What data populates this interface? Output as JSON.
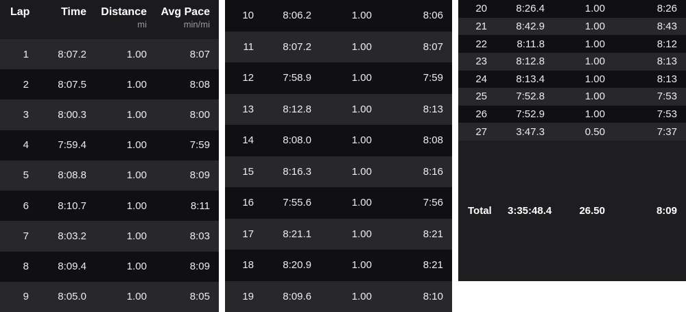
{
  "colors": {
    "page_bg": "#ffffff",
    "header_bg": "#1b1b1d",
    "row_light": "#28282a",
    "row_dark": "#101012",
    "total_bg": "#1e1e20",
    "text_primary": "#ececee",
    "text_header": "#ffffff",
    "text_unit": "#98989e"
  },
  "header": {
    "columns": [
      {
        "label": "Lap",
        "unit": ""
      },
      {
        "label": "Time",
        "unit": ""
      },
      {
        "label": "Distance",
        "unit": "mi"
      },
      {
        "label": "Avg Pace",
        "unit": "min/mi"
      }
    ]
  },
  "panels": [
    {
      "name": "laps-1-9",
      "rows": [
        {
          "lap": "1",
          "time": "8:07.2",
          "distance": "1.00",
          "pace": "8:07"
        },
        {
          "lap": "2",
          "time": "8:07.5",
          "distance": "1.00",
          "pace": "8:08"
        },
        {
          "lap": "3",
          "time": "8:00.3",
          "distance": "1.00",
          "pace": "8:00"
        },
        {
          "lap": "4",
          "time": "7:59.4",
          "distance": "1.00",
          "pace": "7:59"
        },
        {
          "lap": "5",
          "time": "8:08.8",
          "distance": "1.00",
          "pace": "8:09"
        },
        {
          "lap": "6",
          "time": "8:10.7",
          "distance": "1.00",
          "pace": "8:11"
        },
        {
          "lap": "7",
          "time": "8:03.2",
          "distance": "1.00",
          "pace": "8:03"
        },
        {
          "lap": "8",
          "time": "8:09.4",
          "distance": "1.00",
          "pace": "8:09"
        },
        {
          "lap": "9",
          "time": "8:05.0",
          "distance": "1.00",
          "pace": "8:05"
        }
      ]
    },
    {
      "name": "laps-10-19",
      "rows": [
        {
          "lap": "10",
          "time": "8:06.2",
          "distance": "1.00",
          "pace": "8:06"
        },
        {
          "lap": "11",
          "time": "8:07.2",
          "distance": "1.00",
          "pace": "8:07"
        },
        {
          "lap": "12",
          "time": "7:58.9",
          "distance": "1.00",
          "pace": "7:59"
        },
        {
          "lap": "13",
          "time": "8:12.8",
          "distance": "1.00",
          "pace": "8:13"
        },
        {
          "lap": "14",
          "time": "8:08.0",
          "distance": "1.00",
          "pace": "8:08"
        },
        {
          "lap": "15",
          "time": "8:16.3",
          "distance": "1.00",
          "pace": "8:16"
        },
        {
          "lap": "16",
          "time": "7:55.6",
          "distance": "1.00",
          "pace": "7:56"
        },
        {
          "lap": "17",
          "time": "8:21.1",
          "distance": "1.00",
          "pace": "8:21"
        },
        {
          "lap": "18",
          "time": "8:20.9",
          "distance": "1.00",
          "pace": "8:21"
        },
        {
          "lap": "19",
          "time": "8:09.6",
          "distance": "1.00",
          "pace": "8:10"
        }
      ]
    },
    {
      "name": "laps-20-27",
      "rows": [
        {
          "lap": "20",
          "time": "8:26.4",
          "distance": "1.00",
          "pace": "8:26"
        },
        {
          "lap": "21",
          "time": "8:42.9",
          "distance": "1.00",
          "pace": "8:43"
        },
        {
          "lap": "22",
          "time": "8:11.8",
          "distance": "1.00",
          "pace": "8:12"
        },
        {
          "lap": "23",
          "time": "8:12.8",
          "distance": "1.00",
          "pace": "8:13"
        },
        {
          "lap": "24",
          "time": "8:13.4",
          "distance": "1.00",
          "pace": "8:13"
        },
        {
          "lap": "25",
          "time": "7:52.8",
          "distance": "1.00",
          "pace": "7:53"
        },
        {
          "lap": "26",
          "time": "7:52.9",
          "distance": "1.00",
          "pace": "7:53"
        },
        {
          "lap": "27",
          "time": "3:47.3",
          "distance": "0.50",
          "pace": "7:37"
        }
      ]
    }
  ],
  "total": {
    "label": "Total",
    "time": "3:35:48.4",
    "distance": "26.50",
    "pace": "8:09"
  }
}
